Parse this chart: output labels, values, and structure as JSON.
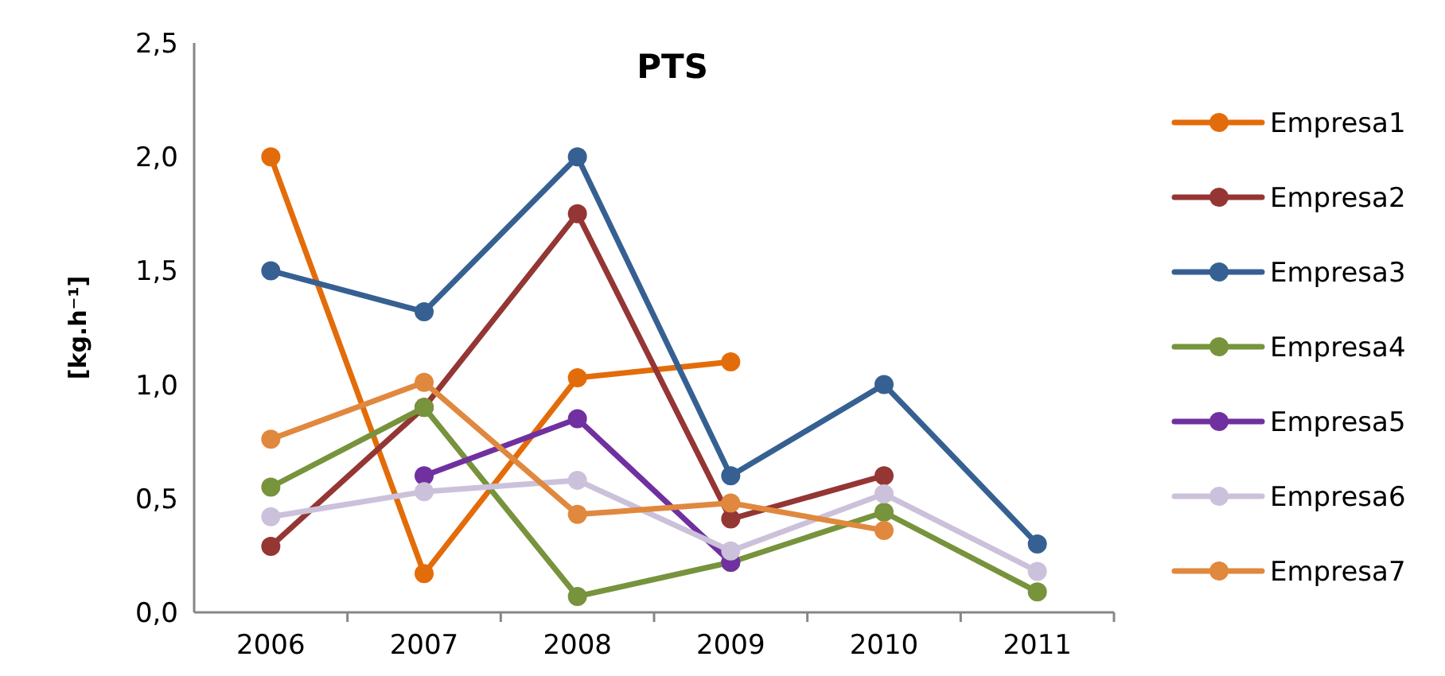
{
  "chart_data": {
    "type": "line",
    "title": "PTS",
    "ylabel": "[kg.h⁻¹]",
    "categories": [
      "2006",
      "2007",
      "2008",
      "2009",
      "2010",
      "2011"
    ],
    "series": [
      {
        "name": "Empresa1",
        "color": "#e36c0a",
        "values": [
          2.0,
          0.17,
          1.03,
          1.1,
          null,
          null
        ]
      },
      {
        "name": "Empresa2",
        "color": "#943634",
        "values": [
          0.29,
          0.9,
          1.75,
          0.41,
          0.6,
          null
        ]
      },
      {
        "name": "Empresa3",
        "color": "#366092",
        "values": [
          1.5,
          1.32,
          2.0,
          0.6,
          1.0,
          0.3
        ]
      },
      {
        "name": "Empresa4",
        "color": "#77933c",
        "values": [
          0.55,
          0.9,
          0.07,
          0.22,
          0.44,
          0.09
        ]
      },
      {
        "name": "Empresa5",
        "color": "#7030a0",
        "values": [
          null,
          0.6,
          0.85,
          0.22,
          null,
          null
        ]
      },
      {
        "name": "Empresa6",
        "color": "#ccc1da",
        "values": [
          0.42,
          0.53,
          0.58,
          0.27,
          0.52,
          0.18
        ]
      },
      {
        "name": "Empresa7",
        "color": "#e0883e",
        "values": [
          0.76,
          1.01,
          0.43,
          0.48,
          0.36,
          null
        ]
      }
    ],
    "ylim": [
      0,
      2.5
    ],
    "yticks": [
      {
        "value": 0,
        "label": "0,0"
      },
      {
        "value": 0.5,
        "label": "0,5"
      },
      {
        "value": 1,
        "label": "1,0"
      },
      {
        "value": 1.5,
        "label": "1,5"
      },
      {
        "value": 2,
        "label": "2,0"
      },
      {
        "value": 2.5,
        "label": "2,5"
      }
    ],
    "grid": false,
    "legend": "right",
    "marker": "circle",
    "line_style": "solid"
  }
}
